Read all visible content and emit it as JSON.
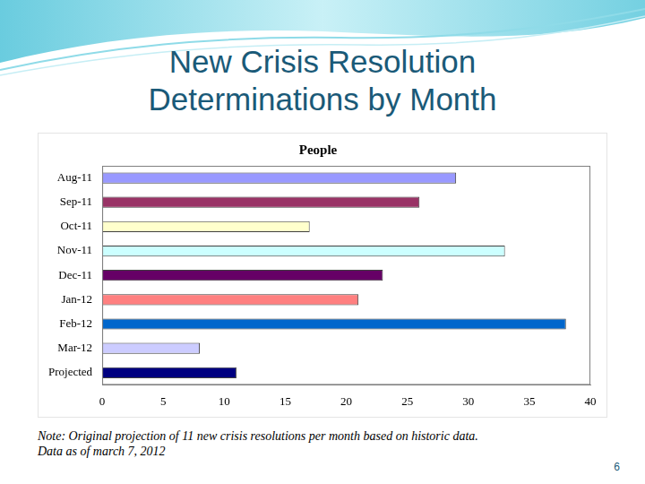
{
  "slide_title": "New Crisis Resolution Determinations by Month",
  "notes": [
    "Note: Original projection of 11 new crisis resolutions per month based on historic data.",
    "Data as of march 7, 2012"
  ],
  "page_number": 6,
  "chart_data": {
    "type": "bar",
    "orientation": "horizontal",
    "title": "People",
    "categories": [
      "Aug-11",
      "Sep-11",
      "Oct-11",
      "Nov-11",
      "Dec-11",
      "Jan-12",
      "Feb-12",
      "Mar-12",
      "Projected"
    ],
    "values": [
      29,
      26,
      17,
      33,
      23,
      21,
      38,
      8,
      11
    ],
    "colors": [
      "#9999ff",
      "#993366",
      "#ffffcc",
      "#ccffff",
      "#660066",
      "#ff8080",
      "#0066cc",
      "#ccccff",
      "#000080"
    ],
    "xlim": [
      0,
      40
    ],
    "xticks": [
      0,
      5,
      10,
      15,
      20,
      25,
      30,
      35,
      40
    ],
    "grid": false
  }
}
